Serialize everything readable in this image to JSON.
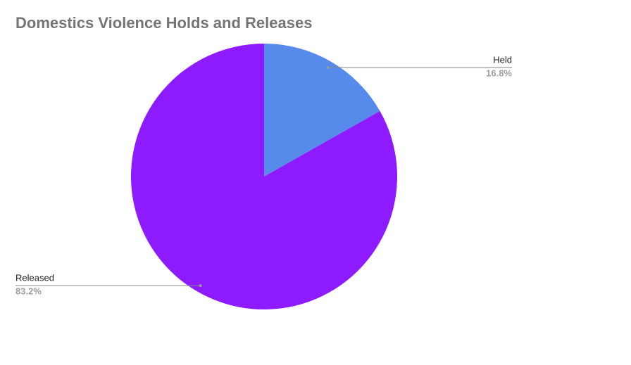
{
  "chart_data": {
    "type": "pie",
    "title": "Domestics Violence Holds and Releases",
    "categories": [
      "Held",
      "Released"
    ],
    "values": [
      16.8,
      83.2
    ],
    "value_labels": [
      "16.8%",
      "83.2%"
    ],
    "colors": [
      "#568bec",
      "#8e1aff"
    ]
  }
}
